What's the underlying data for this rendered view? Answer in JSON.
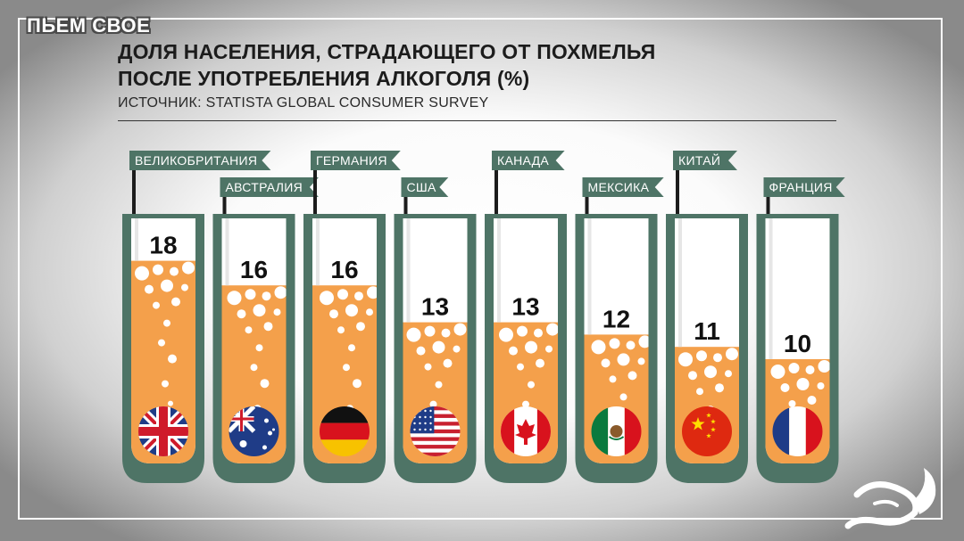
{
  "brand": "ПЬЕМ СВОЕ",
  "title_line1": "ДОЛЯ НАСЕЛЕНИЯ, СТРАДАЮЩЕГО ОТ ПОХМЕЛЬЯ",
  "title_line2": "ПОСЛЕ УПОТРЕБЛЕНИЯ АЛКОГОЛЯ (%)",
  "source": "ИСТОЧНИК: STATISTA GLOBAL CONSUMER SURVEY",
  "colors": {
    "tube": "#4e7466",
    "liquid": "#f4a04b",
    "flag_bg": "#4e7466",
    "text": "#1c1c1c"
  },
  "chart_data": {
    "type": "bar",
    "categories": [
      "ВЕЛИКОБРИТАНИЯ",
      "АВСТРАЛИЯ",
      "ГЕРМАНИЯ",
      "США",
      "КАНАДА",
      "МЕКСИКА",
      "КИТАЙ",
      "ФРАНЦИЯ"
    ],
    "values": [
      18,
      16,
      16,
      13,
      13,
      12,
      11,
      10
    ],
    "flag_icons": [
      "uk-flag-icon",
      "australia-flag-icon",
      "germany-flag-icon",
      "usa-flag-icon",
      "canada-flag-icon",
      "mexico-flag-icon",
      "china-flag-icon",
      "france-flag-icon"
    ],
    "ylabel": "",
    "xlabel": ""
  }
}
